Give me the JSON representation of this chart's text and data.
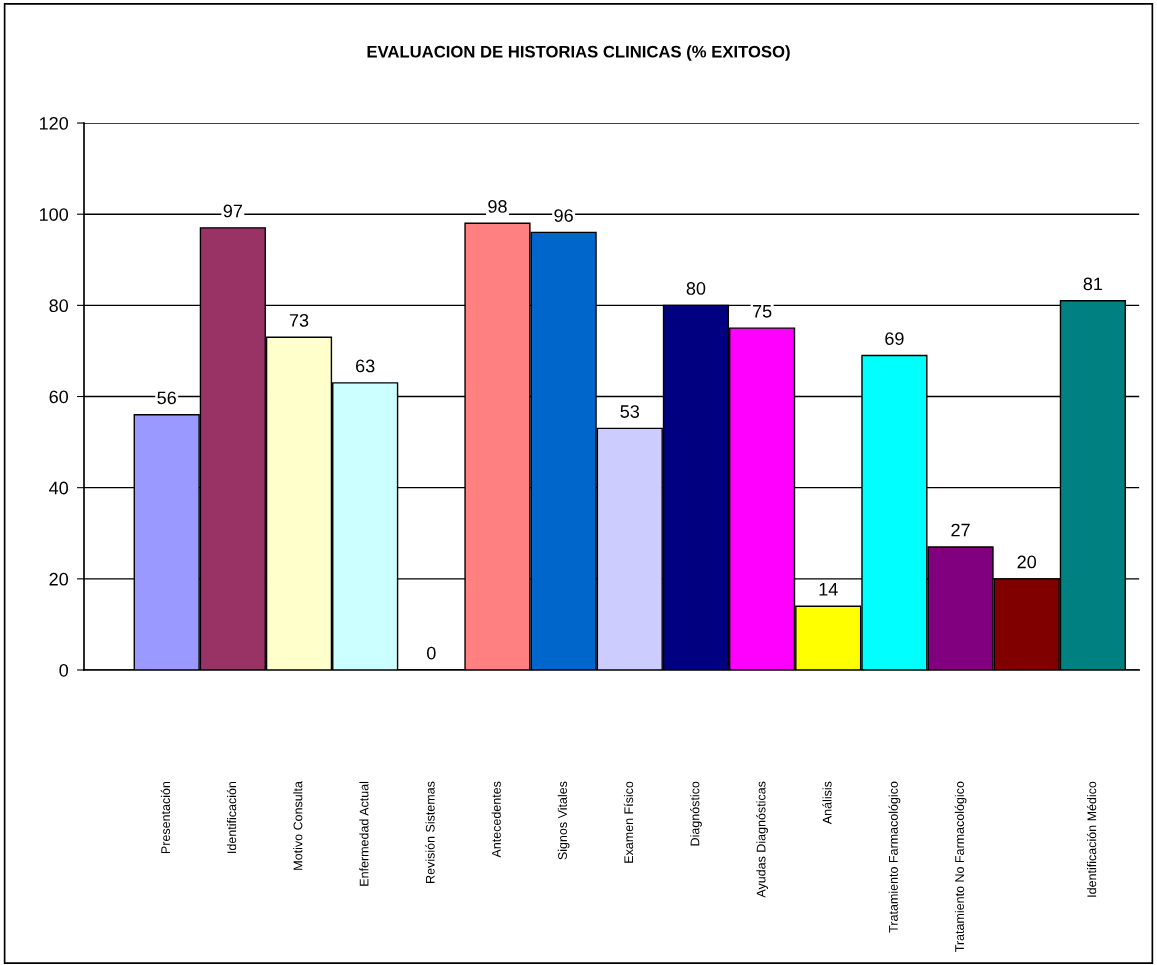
{
  "chart_data": {
    "type": "bar",
    "title": "EVALUACION DE HISTORIAS CLINICAS (% EXITOSO)",
    "categories": [
      "Presentación",
      "Identificación",
      "Motivo Consulta",
      "Enfermedad Actual",
      "Revisión Sistemas",
      "Antecedentes",
      "Signos Vitales",
      "Examen Físico",
      "Diagnóstico",
      "Ayudas Diagnósticas",
      "Análisis",
      "Tratamiento Farmacológico",
      "Tratamiento No Farmacológico",
      null,
      "Identificación Médico"
    ],
    "values": [
      56,
      97,
      73,
      63,
      0,
      98,
      96,
      53,
      80,
      75,
      14,
      69,
      27,
      20,
      81
    ],
    "colors": [
      "#9999ff",
      "#993366",
      "#ffffcc",
      "#ccffff",
      "#000000",
      "#ff8080",
      "#0066cc",
      "#ccccff",
      "#000080",
      "#ff00ff",
      "#ffff00",
      "#00ffff",
      "#800080",
      "#800000",
      "#008080"
    ],
    "ylim": [
      0,
      120
    ],
    "yticks": [
      0,
      20,
      40,
      60,
      80,
      100,
      120
    ],
    "grid": "y",
    "data_labels": true,
    "legend": false
  }
}
